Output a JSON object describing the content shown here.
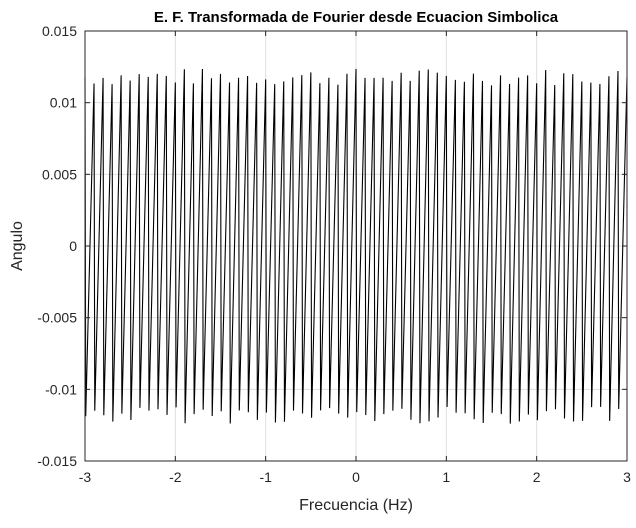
{
  "chart_data": {
    "type": "line",
    "title": "E. F. Transformada de Fourier desde Ecuacion Simbolica",
    "xlabel": "Frecuencia (Hz)",
    "ylabel": "Angulo",
    "xlim": [
      -3,
      3
    ],
    "ylim": [
      -0.015,
      0.015
    ],
    "xticks": [
      -3,
      -2,
      -1,
      0,
      1,
      2,
      3
    ],
    "xtick_labels": [
      "-3",
      "-2",
      "-1",
      "0",
      "1",
      "2",
      "3"
    ],
    "yticks": [
      -0.015,
      -0.01,
      -0.005,
      0,
      0.005,
      0.01,
      0.015
    ],
    "ytick_labels": [
      "-0.015",
      "-0.01",
      "-0.005",
      "0",
      "0.005",
      "0.01",
      "0.015"
    ],
    "grid": true,
    "box": true,
    "series": [
      {
        "color": "#000000",
        "description": "sawtooth-like phase oscillation; about 60 cycles between x=-3 and x=3, peaks near +0.0115 to +0.0125, troughs near -0.0115 to -0.0125",
        "x_start": -3,
        "x_end": 3,
        "cycles": 60,
        "amplitude_mean": 0.0118,
        "amplitude_jitter": 0.0006
      }
    ]
  }
}
